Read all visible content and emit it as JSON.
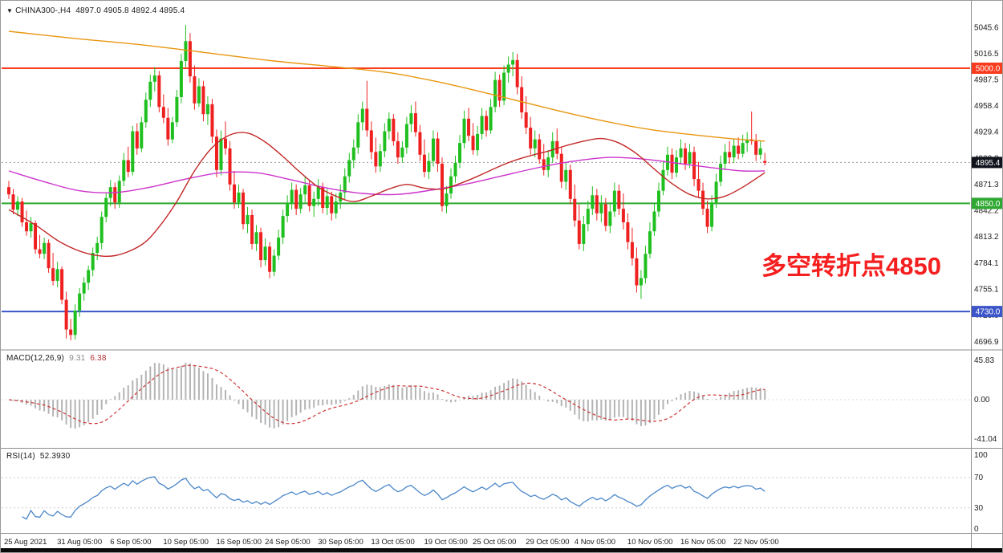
{
  "window": {
    "dropdown_glyph": "▼",
    "title": "CHINA300-,H4",
    "ohlc_display": "4897.0 4905.8 4892.4 4895.4"
  },
  "indicators": {
    "macd": {
      "label": "MACD(12,26,9)",
      "main_value": "9.31",
      "signal_value": "6.38",
      "y_ticks": [
        "45.83",
        "0.00",
        "-41.04"
      ],
      "histogram_color": "#b4b4b4",
      "signal_color": "#cf3434"
    },
    "rsi": {
      "label": "RSI(14)",
      "value": "52.3930",
      "y_ticks": [
        "100",
        "70",
        "30",
        "0"
      ],
      "levels": [
        70,
        30
      ],
      "line_color": "#4a86c8"
    }
  },
  "chart_data": {
    "type": "candlestick",
    "symbol": "CHINA300-",
    "timeframe": "H4",
    "title": "CHINA300-,H4 4897.0 4905.8 4892.4 4895.4",
    "ylim": [
      4690,
      5057
    ],
    "price_ticks": [
      5045.6,
      5016.5,
      4987.5,
      4958.4,
      4929.4,
      4900.3,
      4871.3,
      4842.2,
      4813.2,
      4784.1,
      4755.1,
      4726.0,
      4696.9
    ],
    "time_labels": [
      "25 Aug 2021",
      "31 Aug 05:00",
      "6 Sep 05:00",
      "10 Sep 05:00",
      "16 Sep 05:00",
      "24 Sep 05:00",
      "30 Sep 05:00",
      "13 Oct 05:00",
      "19 Oct 05:00",
      "25 Oct 05:00",
      "29 Oct 05:00",
      "4 Nov 05:00",
      "10 Nov 05:00",
      "16 Nov 05:00",
      "22 Nov 05:00"
    ],
    "time_label_indices": [
      0,
      12,
      24,
      36,
      48,
      59,
      71,
      83,
      95,
      106,
      118,
      129,
      141,
      153,
      165
    ],
    "up_color": "#1fbf1f",
    "down_color": "#ef2020",
    "hlines": [
      {
        "value": 5000.0,
        "label": "5000.0",
        "color": "#fa3c1e"
      },
      {
        "value": 4850.0,
        "label": "4850.0",
        "color": "#2fa832"
      },
      {
        "value": 4730.0,
        "label": "4730.0",
        "color": "#3c55c8"
      }
    ],
    "current_price": {
      "value": 4895.4,
      "label": "4895.4",
      "label_bg": "#10121c"
    },
    "annotation": {
      "text": "多空转折点4850",
      "color": "#f51f1f"
    },
    "macd_params": [
      12,
      26,
      9
    ],
    "rsi_period": 14,
    "candles": [
      [
        4868,
        4875,
        4855,
        4860
      ],
      [
        4860,
        4866,
        4838,
        4843
      ],
      [
        4843,
        4858,
        4836,
        4852
      ],
      [
        4852,
        4856,
        4824,
        4829
      ],
      [
        4829,
        4842,
        4814,
        4819
      ],
      [
        4819,
        4835,
        4812,
        4828
      ],
      [
        4828,
        4831,
        4794,
        4799
      ],
      [
        4799,
        4815,
        4789,
        4794
      ],
      [
        4794,
        4812,
        4788,
        4806
      ],
      [
        4806,
        4810,
        4773,
        4778
      ],
      [
        4778,
        4795,
        4759,
        4764
      ],
      [
        4764,
        4785,
        4757,
        4777
      ],
      [
        4777,
        4780,
        4738,
        4743
      ],
      [
        4743,
        4752,
        4700,
        4710
      ],
      [
        4710,
        4722,
        4698,
        4704
      ],
      [
        4704,
        4738,
        4699,
        4731
      ],
      [
        4731,
        4756,
        4724,
        4750
      ],
      [
        4750,
        4768,
        4742,
        4762
      ],
      [
        4762,
        4781,
        4754,
        4776
      ],
      [
        4776,
        4801,
        4769,
        4795
      ],
      [
        4795,
        4813,
        4787,
        4806
      ],
      [
        4806,
        4841,
        4799,
        4835
      ],
      [
        4835,
        4862,
        4829,
        4856
      ],
      [
        4856,
        4876,
        4847,
        4868
      ],
      [
        4868,
        4873,
        4844,
        4851
      ],
      [
        4851,
        4881,
        4845,
        4875
      ],
      [
        4875,
        4906,
        4869,
        4898
      ],
      [
        4898,
        4913,
        4879,
        4885
      ],
      [
        4885,
        4936,
        4881,
        4930
      ],
      [
        4930,
        4939,
        4904,
        4911
      ],
      [
        4911,
        4946,
        4907,
        4940
      ],
      [
        4940,
        4973,
        4934,
        4965
      ],
      [
        4965,
        4993,
        4957,
        4985
      ],
      [
        4985,
        5001,
        4974,
        4992
      ],
      [
        4992,
        4997,
        4951,
        4957
      ],
      [
        4957,
        4971,
        4939,
        4945
      ],
      [
        4945,
        4956,
        4914,
        4921
      ],
      [
        4921,
        4946,
        4917,
        4940
      ],
      [
        4940,
        4976,
        4935,
        4968
      ],
      [
        4968,
        5016,
        4961,
        5008
      ],
      [
        5008,
        5048,
        5001,
        5030
      ],
      [
        5030,
        5039,
        4984,
        4991
      ],
      [
        4991,
        5003,
        4954,
        4961
      ],
      [
        4961,
        4989,
        4957,
        4980
      ],
      [
        4980,
        4986,
        4941,
        4949
      ],
      [
        4949,
        4969,
        4937,
        4960
      ],
      [
        4960,
        4966,
        4917,
        4924
      ],
      [
        4924,
        4932,
        4879,
        4887
      ],
      [
        4887,
        4931,
        4881,
        4922
      ],
      [
        4922,
        4941,
        4904,
        4911
      ],
      [
        4911,
        4919,
        4864,
        4871
      ],
      [
        4871,
        4886,
        4844,
        4851
      ],
      [
        4851,
        4871,
        4845,
        4862
      ],
      [
        4862,
        4866,
        4821,
        4827
      ],
      [
        4827,
        4846,
        4817,
        4837
      ],
      [
        4837,
        4843,
        4799,
        4805
      ],
      [
        4805,
        4826,
        4797,
        4818
      ],
      [
        4818,
        4823,
        4779,
        4787
      ],
      [
        4787,
        4811,
        4781,
        4802
      ],
      [
        4802,
        4807,
        4767,
        4774
      ],
      [
        4774,
        4799,
        4769,
        4792
      ],
      [
        4792,
        4821,
        4787,
        4812
      ],
      [
        4812,
        4843,
        4805,
        4836
      ],
      [
        4836,
        4859,
        4829,
        4850
      ],
      [
        4850,
        4873,
        4843,
        4865
      ],
      [
        4865,
        4871,
        4837,
        4844
      ],
      [
        4844,
        4867,
        4839,
        4860
      ],
      [
        4860,
        4879,
        4851,
        4870
      ],
      [
        4870,
        4876,
        4841,
        4847
      ],
      [
        4847,
        4863,
        4835,
        4855
      ],
      [
        4855,
        4877,
        4847,
        4868
      ],
      [
        4868,
        4873,
        4839,
        4845
      ],
      [
        4845,
        4866,
        4837,
        4858
      ],
      [
        4858,
        4863,
        4831,
        4839
      ],
      [
        4839,
        4861,
        4833,
        4852
      ],
      [
        4852,
        4871,
        4844,
        4862
      ],
      [
        4862,
        4889,
        4855,
        4880
      ],
      [
        4880,
        4906,
        4873,
        4898
      ],
      [
        4898,
        4921,
        4889,
        4912
      ],
      [
        4912,
        4949,
        4905,
        4940
      ],
      [
        4940,
        4963,
        4931,
        4955
      ],
      [
        4955,
        4986,
        4924,
        4931
      ],
      [
        4931,
        4941,
        4899,
        4907
      ],
      [
        4907,
        4923,
        4884,
        4891
      ],
      [
        4891,
        4916,
        4885,
        4908
      ],
      [
        4908,
        4939,
        4901,
        4930
      ],
      [
        4930,
        4951,
        4921,
        4944
      ],
      [
        4944,
        4949,
        4914,
        4919
      ],
      [
        4919,
        4929,
        4894,
        4901
      ],
      [
        4901,
        4919,
        4895,
        4912
      ],
      [
        4912,
        4946,
        4905,
        4938
      ],
      [
        4938,
        4959,
        4929,
        4950
      ],
      [
        4950,
        4963,
        4924,
        4929
      ],
      [
        4929,
        4937,
        4897,
        4904
      ],
      [
        4904,
        4921,
        4879,
        4885
      ],
      [
        4885,
        4906,
        4877,
        4897
      ],
      [
        4897,
        4931,
        4891,
        4922
      ],
      [
        4922,
        4929,
        4885,
        4894
      ],
      [
        4894,
        4901,
        4841,
        4847
      ],
      [
        4847,
        4869,
        4839,
        4861
      ],
      [
        4861,
        4889,
        4855,
        4880
      ],
      [
        4880,
        4903,
        4873,
        4895
      ],
      [
        4895,
        4926,
        4889,
        4917
      ],
      [
        4917,
        4953,
        4911,
        4944
      ],
      [
        4944,
        4956,
        4919,
        4925
      ],
      [
        4925,
        4939,
        4904,
        4909
      ],
      [
        4909,
        4936,
        4903,
        4927
      ],
      [
        4927,
        4956,
        4921,
        4947
      ],
      [
        4947,
        4953,
        4924,
        4931
      ],
      [
        4931,
        4966,
        4927,
        4957
      ],
      [
        4957,
        4996,
        4951,
        4987
      ],
      [
        4987,
        4993,
        4957,
        4964
      ],
      [
        4964,
        5003,
        4959,
        4995
      ],
      [
        4995,
        5013,
        4984,
        5004
      ],
      [
        5004,
        5018,
        4991,
        5009
      ],
      [
        5009,
        5016,
        4971,
        4979
      ],
      [
        4979,
        4991,
        4944,
        4951
      ],
      [
        4951,
        4969,
        4927,
        4934
      ],
      [
        4934,
        4946,
        4904,
        4911
      ],
      [
        4911,
        4931,
        4901,
        4921
      ],
      [
        4921,
        4927,
        4894,
        4899
      ],
      [
        4899,
        4916,
        4881,
        4887
      ],
      [
        4887,
        4909,
        4879,
        4901
      ],
      [
        4901,
        4929,
        4895,
        4919
      ],
      [
        4919,
        4933,
        4899,
        4905
      ],
      [
        4905,
        4913,
        4867,
        4874
      ],
      [
        4874,
        4896,
        4865,
        4887
      ],
      [
        4887,
        4893,
        4849,
        4855
      ],
      [
        4855,
        4871,
        4824,
        4831
      ],
      [
        4831,
        4849,
        4799,
        4805
      ],
      [
        4805,
        4836,
        4797,
        4827
      ],
      [
        4827,
        4853,
        4819,
        4844
      ],
      [
        4844,
        4869,
        4837,
        4859
      ],
      [
        4859,
        4866,
        4831,
        4839
      ],
      [
        4839,
        4859,
        4829,
        4849
      ],
      [
        4849,
        4856,
        4819,
        4825
      ],
      [
        4825,
        4851,
        4817,
        4841
      ],
      [
        4841,
        4873,
        4835,
        4864
      ],
      [
        4864,
        4871,
        4837,
        4844
      ],
      [
        4844,
        4861,
        4821,
        4829
      ],
      [
        4829,
        4839,
        4799,
        4807
      ],
      [
        4807,
        4823,
        4781,
        4789
      ],
      [
        4789,
        4801,
        4751,
        4759
      ],
      [
        4759,
        4776,
        4744,
        4767
      ],
      [
        4767,
        4803,
        4761,
        4794
      ],
      [
        4794,
        4829,
        4789,
        4819
      ],
      [
        4819,
        4849,
        4814,
        4841
      ],
      [
        4841,
        4873,
        4835,
        4864
      ],
      [
        4864,
        4896,
        4859,
        4887
      ],
      [
        4887,
        4913,
        4881,
        4904
      ],
      [
        4904,
        4911,
        4877,
        4884
      ],
      [
        4884,
        4909,
        4879,
        4901
      ],
      [
        4901,
        4921,
        4894,
        4911
      ],
      [
        4911,
        4917,
        4887,
        4894
      ],
      [
        4894,
        4916,
        4889,
        4907
      ],
      [
        4907,
        4913,
        4869,
        4877
      ],
      [
        4877,
        4896,
        4857,
        4864
      ],
      [
        4864,
        4873,
        4837,
        4844
      ],
      [
        4844,
        4853,
        4817,
        4824
      ],
      [
        4824,
        4859,
        4819,
        4851
      ],
      [
        4851,
        4883,
        4845,
        4874
      ],
      [
        4874,
        4903,
        4869,
        4894
      ],
      [
        4894,
        4916,
        4887,
        4907
      ],
      [
        4907,
        4919,
        4894,
        4901
      ],
      [
        4901,
        4921,
        4895,
        4914
      ],
      [
        4914,
        4923,
        4899,
        4905
      ],
      [
        4905,
        4926,
        4901,
        4917
      ],
      [
        4917,
        4929,
        4907,
        4921
      ],
      [
        4921,
        4952,
        4915,
        4919
      ],
      [
        4919,
        4927,
        4897,
        4904
      ],
      [
        4904,
        4919,
        4899,
        4911
      ],
      [
        4897,
        4906,
        4892,
        4895
      ]
    ],
    "ma_lines": [
      {
        "name": "ma-slow-orange",
        "color": "#e8960f",
        "points": [
          [
            0,
            5041
          ],
          [
            15,
            5033
          ],
          [
            30,
            5026
          ],
          [
            45,
            5017
          ],
          [
            60,
            5008
          ],
          [
            75,
            5001
          ],
          [
            86,
            4995
          ],
          [
            95,
            4987
          ],
          [
            105,
            4976
          ],
          [
            115,
            4964
          ],
          [
            125,
            4952
          ],
          [
            135,
            4941
          ],
          [
            145,
            4932
          ],
          [
            155,
            4926
          ],
          [
            163,
            4922
          ],
          [
            171,
            4919
          ]
        ]
      },
      {
        "name": "ma-mid-magenta",
        "color": "#cc33cc",
        "points": [
          [
            0,
            4886
          ],
          [
            8,
            4874
          ],
          [
            16,
            4864
          ],
          [
            24,
            4862
          ],
          [
            32,
            4868
          ],
          [
            40,
            4877
          ],
          [
            48,
            4884
          ],
          [
            56,
            4884
          ],
          [
            64,
            4876
          ],
          [
            72,
            4867
          ],
          [
            80,
            4861
          ],
          [
            88,
            4860
          ],
          [
            96,
            4865
          ],
          [
            104,
            4872
          ],
          [
            112,
            4881
          ],
          [
            120,
            4890
          ],
          [
            128,
            4897
          ],
          [
            136,
            4901
          ],
          [
            144,
            4899
          ],
          [
            152,
            4894
          ],
          [
            160,
            4889
          ],
          [
            166,
            4886
          ],
          [
            171,
            4886
          ]
        ]
      },
      {
        "name": "ma-fast-red",
        "color": "#c22828",
        "points": [
          [
            0,
            4843
          ],
          [
            6,
            4826
          ],
          [
            12,
            4806
          ],
          [
            18,
            4794
          ],
          [
            24,
            4792
          ],
          [
            30,
            4804
          ],
          [
            34,
            4824
          ],
          [
            38,
            4852
          ],
          [
            42,
            4886
          ],
          [
            46,
            4912
          ],
          [
            50,
            4926
          ],
          [
            54,
            4928
          ],
          [
            58,
            4918
          ],
          [
            62,
            4902
          ],
          [
            66,
            4884
          ],
          [
            70,
            4868
          ],
          [
            74,
            4858
          ],
          [
            78,
            4852
          ],
          [
            82,
            4858
          ],
          [
            86,
            4866
          ],
          [
            90,
            4871
          ],
          [
            94,
            4867
          ],
          [
            98,
            4866
          ],
          [
            102,
            4872
          ],
          [
            106,
            4880
          ],
          [
            110,
            4889
          ],
          [
            114,
            4897
          ],
          [
            118,
            4903
          ],
          [
            122,
            4908
          ],
          [
            126,
            4914
          ],
          [
            130,
            4919
          ],
          [
            134,
            4922
          ],
          [
            138,
            4917
          ],
          [
            142,
            4905
          ],
          [
            146,
            4888
          ],
          [
            150,
            4872
          ],
          [
            154,
            4860
          ],
          [
            158,
            4855
          ],
          [
            162,
            4858
          ],
          [
            166,
            4868
          ],
          [
            171,
            4884
          ]
        ]
      }
    ]
  }
}
